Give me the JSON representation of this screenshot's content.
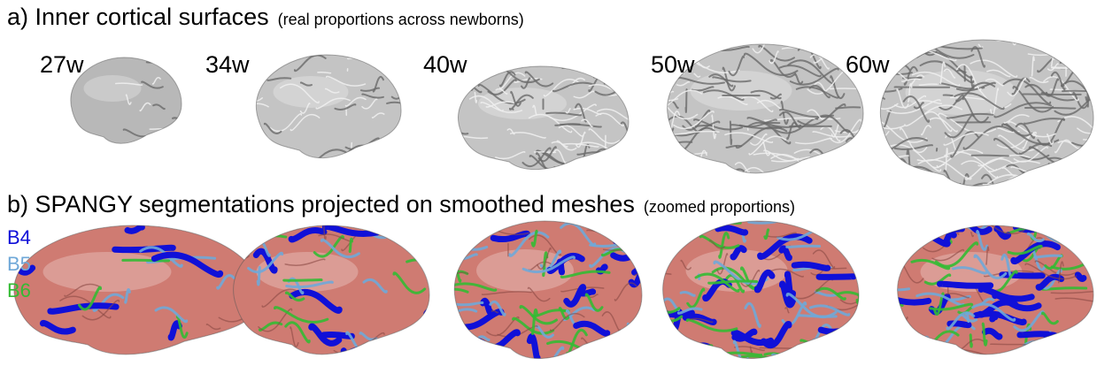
{
  "panel_a": {
    "title": "a) Inner cortical surfaces",
    "subtitle": "(real proportions across newborns)",
    "ages": [
      "27w",
      "34w",
      "40w",
      "50w",
      "60w"
    ]
  },
  "panel_b": {
    "title": "b) SPANGY segmentations projected on smoothed meshes",
    "subtitle": "(zoomed proportions)",
    "legend": [
      {
        "label": "B4",
        "color": "#1010d8"
      },
      {
        "label": "B5",
        "color": "#6fa8d8"
      },
      {
        "label": "B6",
        "color": "#33bb33"
      }
    ]
  }
}
